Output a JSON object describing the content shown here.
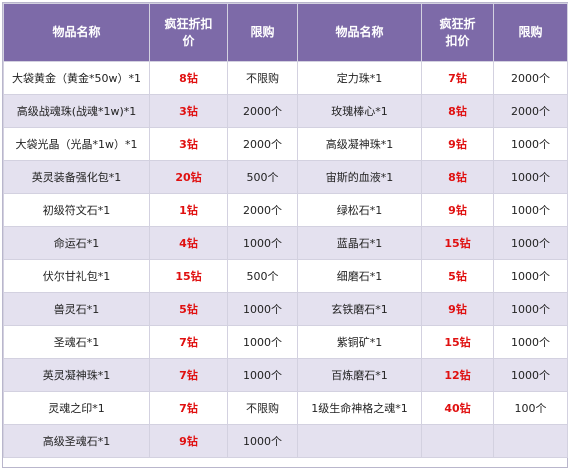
{
  "headers": [
    "物品名称",
    "疯狂折扣价",
    "限购",
    "物品名称",
    "疯狂折扣价",
    "限购"
  ],
  "rows": [
    {
      "left": {
        "name": "大袋黄金（黄金*50w）*1",
        "price": "8钻",
        "limit": "不限购"
      },
      "right": {
        "name": "定力珠*1",
        "price": "7钻",
        "limit": "2000个"
      }
    },
    {
      "left": {
        "name": "高级战魂珠(战魂*1w)*1",
        "price": "3钻",
        "limit": "2000个"
      },
      "right": {
        "name": "玫瑰棒心*1",
        "price": "8钻",
        "limit": "2000个"
      }
    },
    {
      "left": {
        "name": "大袋光晶（光晶*1w）*1",
        "price": "3钻",
        "limit": "2000个"
      },
      "right": {
        "name": "高级凝神珠*1",
        "price": "9钻",
        "limit": "1000个"
      }
    },
    {
      "left": {
        "name": "英灵装备强化包*1",
        "price": "20钻",
        "limit": "500个"
      },
      "right": {
        "name": "宙斯的血液*1",
        "price": "8钻",
        "limit": "1000个"
      }
    },
    {
      "left": {
        "name": "初级符文石*1",
        "price": "1钻",
        "limit": "2000个"
      },
      "right": {
        "name": "绿松石*1",
        "price": "9钻",
        "limit": "1000个"
      }
    },
    {
      "left": {
        "name": "命运石*1",
        "price": "4钻",
        "limit": "1000个"
      },
      "right": {
        "name": "蓝晶石*1",
        "price": "15钻",
        "limit": "1000个"
      }
    },
    {
      "left": {
        "name": "伏尔甘礼包*1",
        "price": "15钻",
        "limit": "500个"
      },
      "right": {
        "name": "细磨石*1",
        "price": "5钻",
        "limit": "1000个"
      }
    },
    {
      "left": {
        "name": "兽灵石*1",
        "price": "5钻",
        "limit": "1000个"
      },
      "right": {
        "name": "玄铁磨石*1",
        "price": "9钻",
        "limit": "1000个"
      }
    },
    {
      "left": {
        "name": "圣魂石*1",
        "price": "7钻",
        "limit": "1000个"
      },
      "right": {
        "name": "紫铜矿*1",
        "price": "15钻",
        "limit": "1000个"
      }
    },
    {
      "left": {
        "name": "英灵凝神珠*1",
        "price": "7钻",
        "limit": "1000个"
      },
      "right": {
        "name": "百炼磨石*1",
        "price": "12钻",
        "limit": "1000个"
      }
    },
    {
      "left": {
        "name": "灵魂之印*1",
        "price": "7钻",
        "limit": "不限购"
      },
      "right": {
        "name": "1级生命神格之魂*1",
        "price": "40钻",
        "limit": "100个"
      }
    },
    {
      "left": {
        "name": "高级圣魂石*1",
        "price": "9钻",
        "limit": "1000个"
      },
      "right": {
        "name": "",
        "price": "",
        "limit": ""
      }
    }
  ]
}
